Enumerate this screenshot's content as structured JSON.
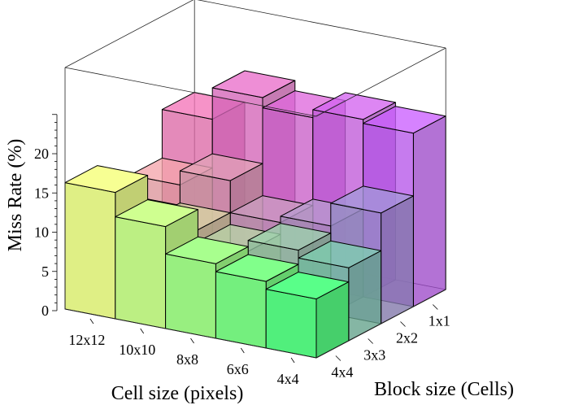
{
  "chart_data": {
    "type": "bar3d",
    "title": "",
    "xlabel": "Cell size (pixels)",
    "ylabel": "Block size (Cells)",
    "zlabel": "Miss Rate (%)",
    "zlim": [
      0,
      25
    ],
    "zticks": [
      "0",
      "5",
      "10",
      "15",
      "20"
    ],
    "cell_sizes": [
      "12x12",
      "10x10",
      "8x8",
      "6x6",
      "4x4"
    ],
    "block_sizes": [
      "4x4",
      "3x3",
      "2x2",
      "1x1"
    ],
    "values": [
      [
        16.1,
        10.1,
        12.7,
        18.9
      ],
      [
        13.0,
        10.4,
        14.5,
        22.9
      ],
      [
        9.5,
        8.9,
        10.4,
        21.6
      ],
      [
        8.5,
        10.3,
        11.2,
        22.6
      ],
      [
        7.5,
        9.3,
        14.1,
        22.1
      ]
    ]
  }
}
